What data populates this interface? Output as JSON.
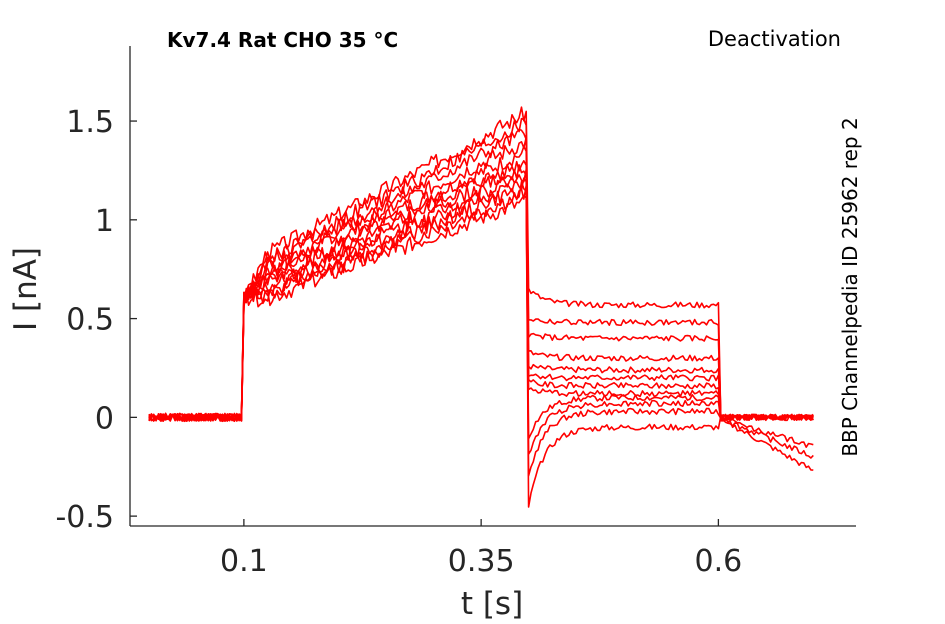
{
  "chart_data": {
    "type": "line",
    "title": "Kv7.4  Rat  CHO  35 °C",
    "subtitle": "Deactivation",
    "side_annotation": "BBP Channelpedia ID 25962 rep 2",
    "xlabel": "t [s]",
    "ylabel": "I [nA]",
    "xlim": [
      -0.02,
      0.745
    ],
    "ylim": [
      -0.55,
      1.88
    ],
    "xticks": [
      0.1,
      0.35,
      0.6
    ],
    "xtick_labels": [
      "0.1",
      "0.35",
      "0.6"
    ],
    "yticks": [
      -0.5,
      0,
      0.5,
      1,
      1.5
    ],
    "ytick_labels": [
      "-0.5",
      "0",
      "0.5",
      "1",
      "1.5"
    ],
    "grid": false,
    "legend": "none",
    "color": "#ff0000",
    "protocol": {
      "t_start": 0.0,
      "t_step1": 0.1,
      "t_step2": 0.4,
      "t_step3": 0.6,
      "t_end": 0.7
    },
    "series": [
      {
        "baseline": 0.0,
        "step_start": 0.6,
        "step_mid": 0.83,
        "step_end": 1.55,
        "tail_level": 0.57,
        "tail_peak": 0.65,
        "post_level": 0.0
      },
      {
        "baseline": 0.0,
        "step_start": 0.6,
        "step_mid": 0.8,
        "step_end": 1.5,
        "tail_level": 0.48,
        "tail_peak": 0.5,
        "post_level": 0.0
      },
      {
        "baseline": 0.0,
        "step_start": 0.6,
        "step_mid": 0.78,
        "step_end": 1.45,
        "tail_level": 0.4,
        "tail_peak": 0.42,
        "post_level": 0.0
      },
      {
        "baseline": 0.0,
        "step_start": 0.6,
        "step_mid": 0.76,
        "step_end": 1.4,
        "tail_level": 0.3,
        "tail_peak": 0.33,
        "post_level": 0.0
      },
      {
        "baseline": 0.0,
        "step_start": 0.6,
        "step_mid": 0.74,
        "step_end": 1.35,
        "tail_level": 0.24,
        "tail_peak": 0.26,
        "post_level": 0.0
      },
      {
        "baseline": 0.0,
        "step_start": 0.6,
        "step_mid": 0.72,
        "step_end": 1.3,
        "tail_level": 0.2,
        "tail_peak": 0.22,
        "post_level": 0.0
      },
      {
        "baseline": 0.0,
        "step_start": 0.6,
        "step_mid": 0.7,
        "step_end": 1.27,
        "tail_level": 0.16,
        "tail_peak": 0.18,
        "post_level": 0.0
      },
      {
        "baseline": 0.0,
        "step_start": 0.6,
        "step_mid": 0.68,
        "step_end": 1.24,
        "tail_level": 0.12,
        "tail_peak": 0.14,
        "post_level": 0.0
      },
      {
        "baseline": 0.0,
        "step_start": 0.6,
        "step_mid": 0.66,
        "step_end": 1.2,
        "tail_level": 0.1,
        "tail_peak": -0.1,
        "post_level": 0.0
      },
      {
        "baseline": 0.0,
        "step_start": 0.6,
        "step_mid": 0.64,
        "step_end": 1.17,
        "tail_level": 0.07,
        "tail_peak": -0.2,
        "post_level": -0.15
      },
      {
        "baseline": 0.0,
        "step_start": 0.6,
        "step_mid": 0.62,
        "step_end": 1.14,
        "tail_level": 0.03,
        "tail_peak": -0.3,
        "post_level": -0.2
      },
      {
        "baseline": 0.0,
        "step_start": 0.6,
        "step_mid": 0.6,
        "step_end": 1.1,
        "tail_level": -0.05,
        "tail_peak": -0.45,
        "post_level": -0.27
      }
    ]
  }
}
